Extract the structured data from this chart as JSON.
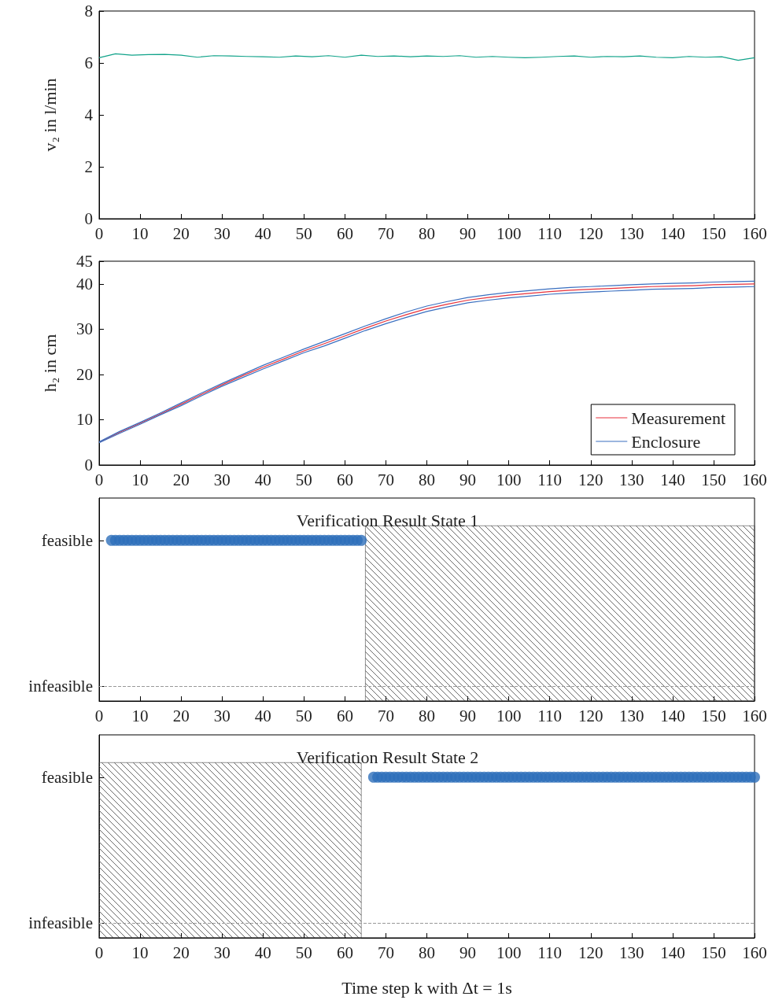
{
  "chart_data": [
    {
      "type": "line",
      "ylabel": "v₂ in l/min",
      "xlim": [
        0,
        160
      ],
      "xticks": [
        0,
        10,
        20,
        30,
        40,
        50,
        60,
        70,
        80,
        90,
        100,
        110,
        120,
        130,
        140,
        150,
        160
      ],
      "ylim": [
        0,
        8
      ],
      "yticks": [
        0,
        2,
        4,
        6,
        8
      ],
      "grid": false,
      "marker": "none",
      "x": [
        0,
        4,
        8,
        12,
        16,
        20,
        24,
        28,
        32,
        36,
        40,
        44,
        48,
        52,
        56,
        60,
        64,
        68,
        72,
        76,
        80,
        84,
        88,
        92,
        96,
        100,
        104,
        108,
        112,
        116,
        120,
        124,
        128,
        132,
        136,
        140,
        144,
        148,
        152,
        156,
        160
      ],
      "series": [
        {
          "color": "#11a38a",
          "values": [
            6.2,
            6.35,
            6.3,
            6.32,
            6.33,
            6.3,
            6.22,
            6.28,
            6.27,
            6.25,
            6.24,
            6.22,
            6.27,
            6.24,
            6.28,
            6.22,
            6.3,
            6.25,
            6.27,
            6.24,
            6.27,
            6.25,
            6.28,
            6.22,
            6.25,
            6.22,
            6.2,
            6.22,
            6.25,
            6.27,
            6.22,
            6.25,
            6.24,
            6.27,
            6.22,
            6.2,
            6.25,
            6.22,
            6.24,
            6.1,
            6.2
          ]
        }
      ]
    },
    {
      "type": "line",
      "ylabel": "h₂ in cm",
      "xlim": [
        0,
        160
      ],
      "xticks": [
        0,
        10,
        20,
        30,
        40,
        50,
        60,
        70,
        80,
        90,
        100,
        110,
        120,
        130,
        140,
        150,
        160
      ],
      "ylim": [
        0,
        45
      ],
      "yticks": [
        0,
        10,
        20,
        30,
        40,
        45
      ],
      "grid": false,
      "marker": "none",
      "legend": "bottom right",
      "x": [
        0,
        5,
        10,
        15,
        20,
        25,
        30,
        35,
        40,
        45,
        50,
        55,
        60,
        65,
        70,
        75,
        80,
        85,
        90,
        95,
        100,
        105,
        110,
        115,
        120,
        125,
        130,
        135,
        140,
        145,
        150,
        155,
        160
      ],
      "series": [
        {
          "name": "Measurement",
          "color": "#e8313a",
          "values": [
            5,
            7.2,
            9.2,
            11.3,
            13.4,
            15.6,
            17.7,
            19.7,
            21.6,
            23.4,
            25.2,
            26.8,
            28.5,
            30.2,
            31.8,
            33.2,
            34.5,
            35.5,
            36.4,
            37.0,
            37.5,
            37.9,
            38.3,
            38.6,
            38.8,
            39.0,
            39.2,
            39.4,
            39.5,
            39.6,
            39.8,
            39.9,
            40.0
          ]
        },
        {
          "name": "Enclosure",
          "color": "#3a6fc0",
          "values": [
            5.1,
            7.4,
            9.4,
            11.5,
            13.7,
            15.9,
            18.0,
            20.0,
            22.0,
            23.8,
            25.6,
            27.3,
            29.0,
            30.7,
            32.3,
            33.8,
            35.1,
            36.1,
            37.0,
            37.6,
            38.1,
            38.5,
            38.9,
            39.2,
            39.4,
            39.6,
            39.8,
            40.0,
            40.1,
            40.2,
            40.4,
            40.5,
            40.6
          ]
        },
        {
          "color": "#3a6fc0",
          "values": [
            4.9,
            7.0,
            9.0,
            11.1,
            13.1,
            15.3,
            17.4,
            19.3,
            21.2,
            23.0,
            24.8,
            26.3,
            28.0,
            29.7,
            31.2,
            32.6,
            33.9,
            34.9,
            35.8,
            36.4,
            36.9,
            37.3,
            37.7,
            38.0,
            38.2,
            38.4,
            38.6,
            38.8,
            38.9,
            39.0,
            39.2,
            39.3,
            39.4
          ]
        }
      ]
    },
    {
      "type": "scatter",
      "title": "Verification Result State 1",
      "orientation": "horizontal",
      "categories": [
        "feasible",
        "infeasible"
      ],
      "xlim": [
        0,
        160
      ],
      "xticks": [
        0,
        10,
        20,
        30,
        40,
        50,
        60,
        70,
        80,
        90,
        100,
        110,
        120,
        130,
        140,
        150,
        160
      ],
      "grid": false,
      "marker": "circle",
      "ref_lines": [
        {
          "axis": "y",
          "value": "infeasible",
          "color": "#999999",
          "line_style": "dashed"
        }
      ],
      "bands": [
        {
          "axis": "x",
          "from": 65,
          "to": 160,
          "color": "#444444"
        }
      ],
      "series": [
        {
          "color": "#2e6fba",
          "x": [
            "feasible",
            "feasible",
            "feasible",
            "feasible",
            "feasible",
            "feasible",
            "feasible",
            "feasible",
            "feasible",
            "feasible",
            "feasible",
            "feasible",
            "feasible",
            "feasible",
            "feasible",
            "feasible",
            "feasible",
            "feasible",
            "feasible",
            "feasible",
            "feasible",
            "feasible",
            "feasible",
            "feasible",
            "feasible",
            "feasible",
            "feasible",
            "feasible",
            "feasible",
            "feasible",
            "feasible",
            "feasible",
            "feasible",
            "feasible",
            "feasible",
            "feasible",
            "feasible",
            "feasible",
            "feasible",
            "feasible",
            "feasible",
            "feasible",
            "feasible",
            "feasible",
            "feasible",
            "feasible",
            "feasible",
            "feasible",
            "feasible",
            "feasible",
            "feasible",
            "feasible",
            "feasible",
            "feasible",
            "feasible",
            "feasible",
            "feasible",
            "feasible",
            "feasible",
            "feasible",
            "feasible",
            "feasible"
          ],
          "values": [
            3,
            4,
            5,
            6,
            7,
            8,
            9,
            10,
            11,
            12,
            13,
            14,
            15,
            16,
            17,
            18,
            19,
            20,
            21,
            22,
            23,
            24,
            25,
            26,
            27,
            28,
            29,
            30,
            31,
            32,
            33,
            34,
            35,
            36,
            37,
            38,
            39,
            40,
            41,
            42,
            43,
            44,
            45,
            46,
            47,
            48,
            49,
            50,
            51,
            52,
            53,
            54,
            55,
            56,
            57,
            58,
            59,
            60,
            61,
            62,
            63,
            64
          ]
        }
      ]
    },
    {
      "type": "scatter",
      "title": "Verification Result State 2",
      "xlabel": "Time step k with Δt = 1s",
      "orientation": "horizontal",
      "categories": [
        "feasible",
        "infeasible"
      ],
      "xlim": [
        0,
        160
      ],
      "xticks": [
        0,
        10,
        20,
        30,
        40,
        50,
        60,
        70,
        80,
        90,
        100,
        110,
        120,
        130,
        140,
        150,
        160
      ],
      "grid": false,
      "marker": "circle",
      "ref_lines": [
        {
          "axis": "y",
          "value": "infeasible",
          "color": "#999999",
          "line_style": "dashed"
        }
      ],
      "bands": [
        {
          "axis": "x",
          "from": 0,
          "to": 64,
          "color": "#444444"
        }
      ],
      "series": [
        {
          "color": "#2e6fba",
          "x": [
            "feasible",
            "feasible",
            "feasible",
            "feasible",
            "feasible",
            "feasible",
            "feasible",
            "feasible",
            "feasible",
            "feasible",
            "feasible",
            "feasible",
            "feasible",
            "feasible",
            "feasible",
            "feasible",
            "feasible",
            "feasible",
            "feasible",
            "feasible",
            "feasible",
            "feasible",
            "feasible",
            "feasible",
            "feasible",
            "feasible",
            "feasible",
            "feasible",
            "feasible",
            "feasible",
            "feasible",
            "feasible",
            "feasible",
            "feasible",
            "feasible",
            "feasible",
            "feasible",
            "feasible",
            "feasible",
            "feasible",
            "feasible",
            "feasible",
            "feasible",
            "feasible",
            "feasible",
            "feasible",
            "feasible",
            "feasible",
            "feasible",
            "feasible",
            "feasible",
            "feasible",
            "feasible",
            "feasible",
            "feasible",
            "feasible",
            "feasible",
            "feasible",
            "feasible",
            "feasible",
            "feasible",
            "feasible",
            "feasible",
            "feasible",
            "feasible",
            "feasible",
            "feasible",
            "feasible",
            "feasible",
            "feasible",
            "feasible",
            "feasible",
            "feasible",
            "feasible",
            "feasible",
            "feasible",
            "feasible",
            "feasible",
            "feasible",
            "feasible",
            "feasible",
            "feasible",
            "feasible",
            "feasible",
            "feasible",
            "feasible",
            "feasible",
            "feasible",
            "feasible",
            "feasible",
            "feasible",
            "feasible",
            "feasible",
            "feasible"
          ],
          "values": [
            67,
            68,
            69,
            70,
            71,
            72,
            73,
            74,
            75,
            76,
            77,
            78,
            79,
            80,
            81,
            82,
            83,
            84,
            85,
            86,
            87,
            88,
            89,
            90,
            91,
            92,
            93,
            94,
            95,
            96,
            97,
            98,
            99,
            100,
            101,
            102,
            103,
            104,
            105,
            106,
            107,
            108,
            109,
            110,
            111,
            112,
            113,
            114,
            115,
            116,
            117,
            118,
            119,
            120,
            121,
            122,
            123,
            124,
            125,
            126,
            127,
            128,
            129,
            130,
            131,
            132,
            133,
            134,
            135,
            136,
            137,
            138,
            139,
            140,
            141,
            142,
            143,
            144,
            145,
            146,
            147,
            148,
            149,
            150,
            151,
            152,
            153,
            154,
            155,
            156,
            157,
            158,
            159,
            160
          ]
        }
      ]
    }
  ]
}
